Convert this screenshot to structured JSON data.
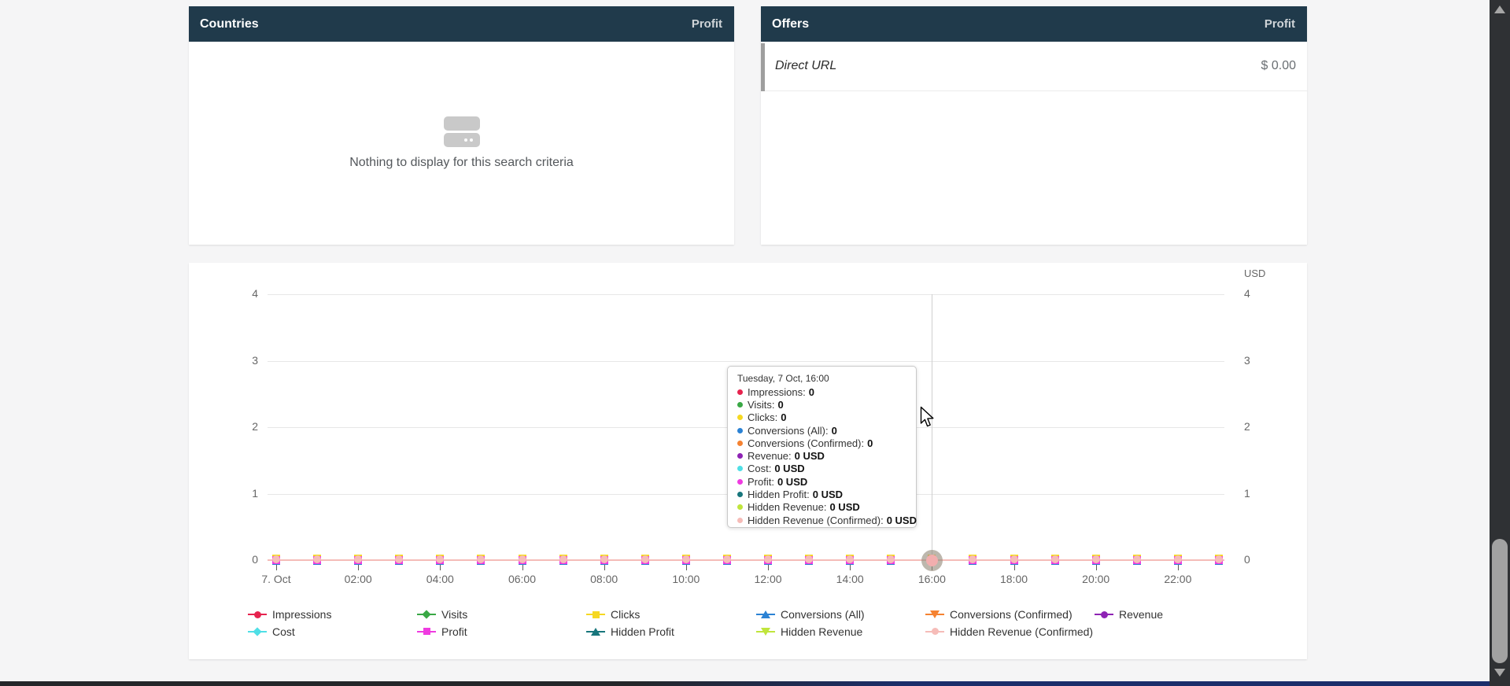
{
  "panels": {
    "countries": {
      "title": "Countries",
      "column": "Profit",
      "empty_icon": "empty-data-icon",
      "empty_text": "Nothing to display for this search criteria"
    },
    "offers": {
      "title": "Offers",
      "column": "Profit",
      "row": {
        "name": "Direct URL",
        "value": "$ 0.00"
      }
    }
  },
  "chart": {
    "currency": "USD",
    "y_ticks": [
      "4",
      "3",
      "2",
      "1",
      "0"
    ],
    "x_labels": [
      "7. Oct",
      "02:00",
      "04:00",
      "06:00",
      "08:00",
      "10:00",
      "12:00",
      "14:00",
      "16:00",
      "18:00",
      "20:00",
      "22:00"
    ],
    "hover_index": 16,
    "tooltip": {
      "title": "Tuesday, 7 Oct, 16:00",
      "items": [
        {
          "label": "Impressions",
          "value": "0",
          "color": "#e6234e"
        },
        {
          "label": "Visits",
          "value": "0",
          "color": "#39a845"
        },
        {
          "label": "Clicks",
          "value": "0",
          "color": "#f6d821"
        },
        {
          "label": "Conversions (All)",
          "value": "0",
          "color": "#2b82d4"
        },
        {
          "label": "Conversions (Confirmed)",
          "value": "0",
          "color": "#f58231"
        },
        {
          "label": "Revenue",
          "value": "0 USD",
          "color": "#8e23b4"
        },
        {
          "label": "Cost",
          "value": "0 USD",
          "color": "#4fdfe6"
        },
        {
          "label": "Profit",
          "value": "0 USD",
          "color": "#ef3be0"
        },
        {
          "label": "Hidden Profit",
          "value": "0 USD",
          "color": "#18767c"
        },
        {
          "label": "Hidden Revenue",
          "value": "0 USD",
          "color": "#c0e53c"
        },
        {
          "label": "Hidden Revenue (Confirmed)",
          "value": "0 USD",
          "color": "#f6bcb8"
        }
      ]
    },
    "legend_rows": [
      [
        {
          "label": "Impressions",
          "color": "#e6234e",
          "shape": "circle"
        },
        {
          "label": "Visits",
          "color": "#39a845",
          "shape": "diamond"
        },
        {
          "label": "Clicks",
          "color": "#f6d821",
          "shape": "square"
        },
        {
          "label": "Conversions (All)",
          "color": "#2b82d4",
          "shape": "triangle"
        },
        {
          "label": "Conversions (Confirmed)",
          "color": "#f58231",
          "shape": "triangle-down"
        },
        {
          "label": "Revenue",
          "color": "#8e23b4",
          "shape": "circle"
        }
      ],
      [
        {
          "label": "Cost",
          "color": "#4fdfe6",
          "shape": "diamond"
        },
        {
          "label": "Profit",
          "color": "#ef3be0",
          "shape": "square"
        },
        {
          "label": "Hidden Profit",
          "color": "#18767c",
          "shape": "triangle"
        },
        {
          "label": "Hidden Revenue",
          "color": "#c0e53c",
          "shape": "triangle-down"
        },
        {
          "label": "Hidden Revenue (Confirmed)",
          "color": "#f6bcb8",
          "shape": "circle"
        }
      ]
    ],
    "marker_stack_colors": [
      "#f6d821",
      "#2b82d4",
      "#ef3be0",
      "#f6bcb8"
    ],
    "zero_line_color": "#f5bcb8"
  },
  "chart_data": {
    "type": "line",
    "title": "",
    "ylabel": "",
    "right_axis_label": "USD",
    "ylim": [
      0,
      4
    ],
    "grid": true,
    "legend_position": "bottom",
    "x": [
      "00:00",
      "01:00",
      "02:00",
      "03:00",
      "04:00",
      "05:00",
      "06:00",
      "07:00",
      "08:00",
      "09:00",
      "10:00",
      "11:00",
      "12:00",
      "13:00",
      "14:00",
      "15:00",
      "16:00",
      "17:00",
      "18:00",
      "19:00",
      "20:00",
      "21:00",
      "22:00",
      "23:00"
    ],
    "x_tick_labels": [
      "7. Oct",
      "02:00",
      "04:00",
      "06:00",
      "08:00",
      "10:00",
      "12:00",
      "14:00",
      "16:00",
      "18:00",
      "20:00",
      "22:00"
    ],
    "series": [
      {
        "name": "Impressions",
        "color": "#e6234e",
        "marker": "circle",
        "values": [
          0,
          0,
          0,
          0,
          0,
          0,
          0,
          0,
          0,
          0,
          0,
          0,
          0,
          0,
          0,
          0,
          0,
          0,
          0,
          0,
          0,
          0,
          0,
          0
        ]
      },
      {
        "name": "Visits",
        "color": "#39a845",
        "marker": "diamond",
        "values": [
          0,
          0,
          0,
          0,
          0,
          0,
          0,
          0,
          0,
          0,
          0,
          0,
          0,
          0,
          0,
          0,
          0,
          0,
          0,
          0,
          0,
          0,
          0,
          0
        ]
      },
      {
        "name": "Clicks",
        "color": "#f6d821",
        "marker": "square",
        "values": [
          0,
          0,
          0,
          0,
          0,
          0,
          0,
          0,
          0,
          0,
          0,
          0,
          0,
          0,
          0,
          0,
          0,
          0,
          0,
          0,
          0,
          0,
          0,
          0
        ]
      },
      {
        "name": "Conversions (All)",
        "color": "#2b82d4",
        "marker": "triangle",
        "values": [
          0,
          0,
          0,
          0,
          0,
          0,
          0,
          0,
          0,
          0,
          0,
          0,
          0,
          0,
          0,
          0,
          0,
          0,
          0,
          0,
          0,
          0,
          0,
          0
        ]
      },
      {
        "name": "Conversions (Confirmed)",
        "color": "#f58231",
        "marker": "triangle-down",
        "values": [
          0,
          0,
          0,
          0,
          0,
          0,
          0,
          0,
          0,
          0,
          0,
          0,
          0,
          0,
          0,
          0,
          0,
          0,
          0,
          0,
          0,
          0,
          0,
          0
        ]
      },
      {
        "name": "Revenue",
        "color": "#8e23b4",
        "marker": "circle",
        "values": [
          0,
          0,
          0,
          0,
          0,
          0,
          0,
          0,
          0,
          0,
          0,
          0,
          0,
          0,
          0,
          0,
          0,
          0,
          0,
          0,
          0,
          0,
          0,
          0
        ]
      },
      {
        "name": "Cost",
        "color": "#4fdfe6",
        "marker": "diamond",
        "values": [
          0,
          0,
          0,
          0,
          0,
          0,
          0,
          0,
          0,
          0,
          0,
          0,
          0,
          0,
          0,
          0,
          0,
          0,
          0,
          0,
          0,
          0,
          0,
          0
        ]
      },
      {
        "name": "Profit",
        "color": "#ef3be0",
        "marker": "square",
        "values": [
          0,
          0,
          0,
          0,
          0,
          0,
          0,
          0,
          0,
          0,
          0,
          0,
          0,
          0,
          0,
          0,
          0,
          0,
          0,
          0,
          0,
          0,
          0,
          0
        ]
      },
      {
        "name": "Hidden Profit",
        "color": "#18767c",
        "marker": "triangle",
        "values": [
          0,
          0,
          0,
          0,
          0,
          0,
          0,
          0,
          0,
          0,
          0,
          0,
          0,
          0,
          0,
          0,
          0,
          0,
          0,
          0,
          0,
          0,
          0,
          0
        ]
      },
      {
        "name": "Hidden Revenue",
        "color": "#c0e53c",
        "marker": "triangle-down",
        "values": [
          0,
          0,
          0,
          0,
          0,
          0,
          0,
          0,
          0,
          0,
          0,
          0,
          0,
          0,
          0,
          0,
          0,
          0,
          0,
          0,
          0,
          0,
          0,
          0
        ]
      },
      {
        "name": "Hidden Revenue (Confirmed)",
        "color": "#f6bcb8",
        "marker": "circle",
        "values": [
          0,
          0,
          0,
          0,
          0,
          0,
          0,
          0,
          0,
          0,
          0,
          0,
          0,
          0,
          0,
          0,
          0,
          0,
          0,
          0,
          0,
          0,
          0,
          0
        ]
      }
    ]
  }
}
